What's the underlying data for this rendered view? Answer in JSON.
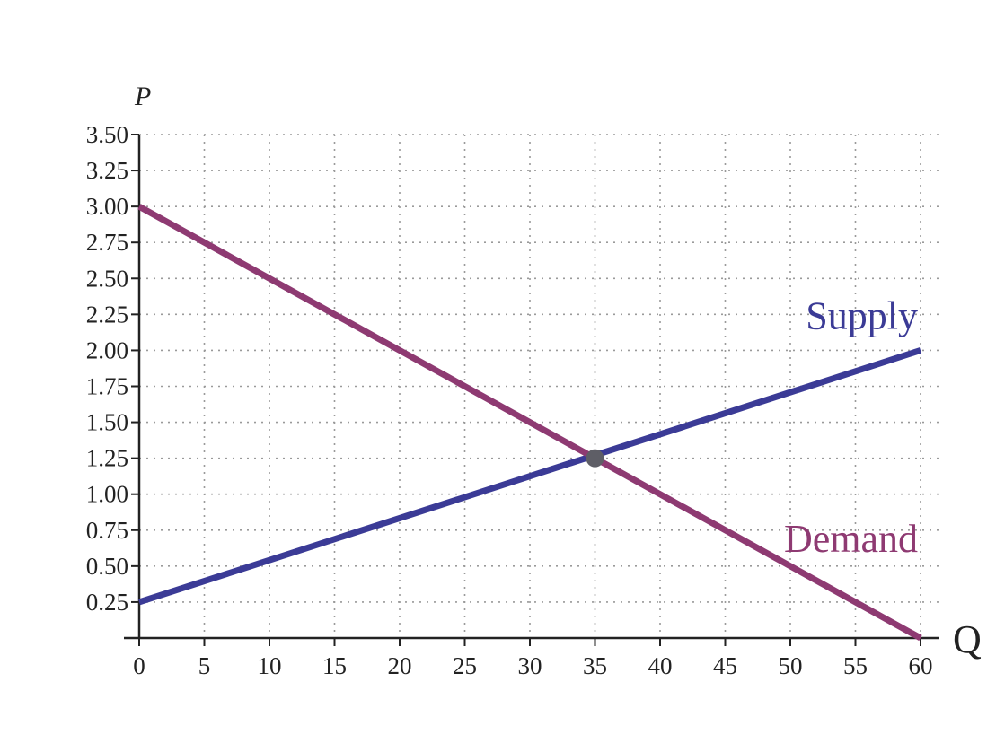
{
  "chart_data": {
    "type": "line",
    "title": "",
    "xlabel": "Q",
    "ylabel": "P",
    "xlim": [
      0,
      60
    ],
    "ylim": [
      0,
      3.5
    ],
    "x_ticks": [
      0,
      5,
      10,
      15,
      20,
      25,
      30,
      35,
      40,
      45,
      50,
      55,
      60
    ],
    "x_tick_labels": [
      "0",
      "5",
      "10",
      "15",
      "20",
      "25",
      "30",
      "35",
      "40",
      "45",
      "50",
      "55",
      "60"
    ],
    "y_ticks": [
      0.25,
      0.5,
      0.75,
      1.0,
      1.25,
      1.5,
      1.75,
      2.0,
      2.25,
      2.5,
      2.75,
      3.0,
      3.25,
      3.5
    ],
    "y_tick_labels": [
      "0.25",
      "0.50",
      "0.75",
      "1.00",
      "1.25",
      "1.50",
      "1.75",
      "2.00",
      "2.25",
      "2.50",
      "2.75",
      "3.00",
      "3.25",
      "3.50"
    ],
    "grid": true,
    "series": [
      {
        "name": "Supply",
        "color": "#3b3b96",
        "x": [
          0,
          60
        ],
        "y": [
          0.25,
          2.0
        ]
      },
      {
        "name": "Demand",
        "color": "#8e3a72",
        "x": [
          0,
          60
        ],
        "y": [
          3.0,
          0.0
        ]
      }
    ],
    "equilibrium": {
      "x": 35,
      "y": 1.25,
      "color": "#5e5e66"
    }
  }
}
